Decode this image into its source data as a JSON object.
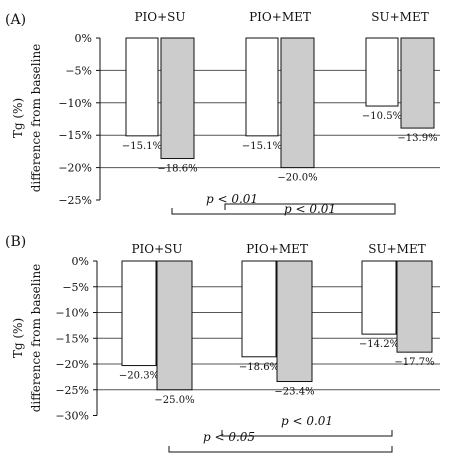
{
  "chart_data": [
    {
      "type": "bar",
      "panel_label": "(A)",
      "categories": [
        "PIO+SU",
        "PIO+MET",
        "SU+MET"
      ],
      "series": [
        {
          "values": [
            -15.1,
            -15.1,
            -10.5
          ],
          "labels": [
            "−15.1%",
            "−15.1%",
            "−10.5%"
          ]
        },
        {
          "values": [
            -18.6,
            -20.0,
            -13.9
          ],
          "labels": [
            "−18.6%",
            "−20.0%",
            "−13.9%"
          ]
        }
      ],
      "ylabel_lines": [
        "Tg (%)",
        "difference from baseline"
      ],
      "ylim": [
        -25,
        0
      ],
      "yticks": [
        0,
        -5,
        -10,
        -15,
        -20,
        -25
      ],
      "ytick_labels": [
        "0%",
        "−5%",
        "−10%",
        "−15%",
        "−20%",
        "−25%"
      ],
      "grid": true,
      "significance": [
        {
          "text": "p < 0.01",
          "from": 0,
          "to": 2
        },
        {
          "text": "p < 0.01",
          "from": 1,
          "to": 2
        }
      ]
    },
    {
      "type": "bar",
      "panel_label": "(B)",
      "categories": [
        "PIO+SU",
        "PIO+MET",
        "SU+MET"
      ],
      "series": [
        {
          "values": [
            -20.3,
            -18.6,
            -14.2
          ],
          "labels": [
            "−20.3%",
            "−18.6%",
            "−14.2%"
          ]
        },
        {
          "values": [
            -25.0,
            -23.4,
            -17.7
          ],
          "labels": [
            "−25.0%",
            "−23.4%",
            "−17.7%"
          ]
        }
      ],
      "ylabel_lines": [
        "Tg (%)",
        "difference from baseline"
      ],
      "ylim": [
        -30,
        0
      ],
      "yticks": [
        0,
        -5,
        -10,
        -15,
        -20,
        -25,
        -30
      ],
      "ytick_labels": [
        "0%",
        "−5%",
        "−10%",
        "−15%",
        "−20%",
        "−25%",
        "−30%"
      ],
      "grid": true,
      "significance": [
        {
          "text": "p < 0.05",
          "from": 0,
          "to": 2
        },
        {
          "text": "p < 0.01",
          "from": 1,
          "to": 2
        }
      ]
    }
  ],
  "colors": {
    "series_0": "#ffffff",
    "series_1": "#cccccc",
    "stroke": "#111111",
    "grid": "#555555"
  }
}
